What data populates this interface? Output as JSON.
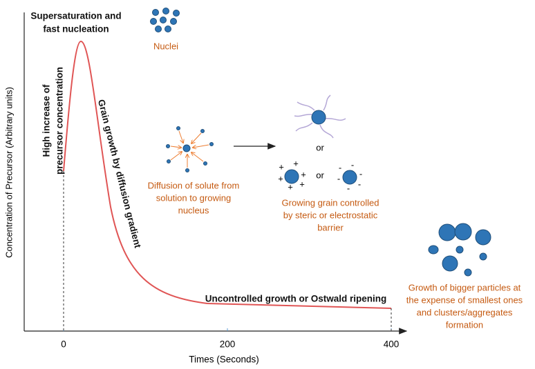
{
  "axes": {
    "y_label": "Concentration of Precursor (Arbitrary units)",
    "x_label": "Times (Seconds)",
    "x_ticks": [
      0,
      200,
      400
    ]
  },
  "annotations": {
    "nucleation": [
      "Supersaturation and",
      "fast nucleation"
    ],
    "nuclei": "Nuclei",
    "precursor_increase": [
      "High increase of",
      "precursor concentration"
    ],
    "grain_growth": "Grain growth by diffusion gradient",
    "diffusion": [
      "Diffusion of solute from",
      "solution to growing",
      "nucleus"
    ],
    "or_1": "or",
    "or_2": "or",
    "growing_grain": [
      "Growing grain controlled",
      "by steric or electrostatic",
      "barrier"
    ],
    "ostwald": "Uncontrolled growth or Ostwald ripening",
    "aggregates": [
      "Growth of bigger particles at",
      "the expense of smallest ones",
      "and clusters/aggregates",
      "formation"
    ]
  },
  "charges": {
    "plus": "+",
    "minus": "-"
  }
}
